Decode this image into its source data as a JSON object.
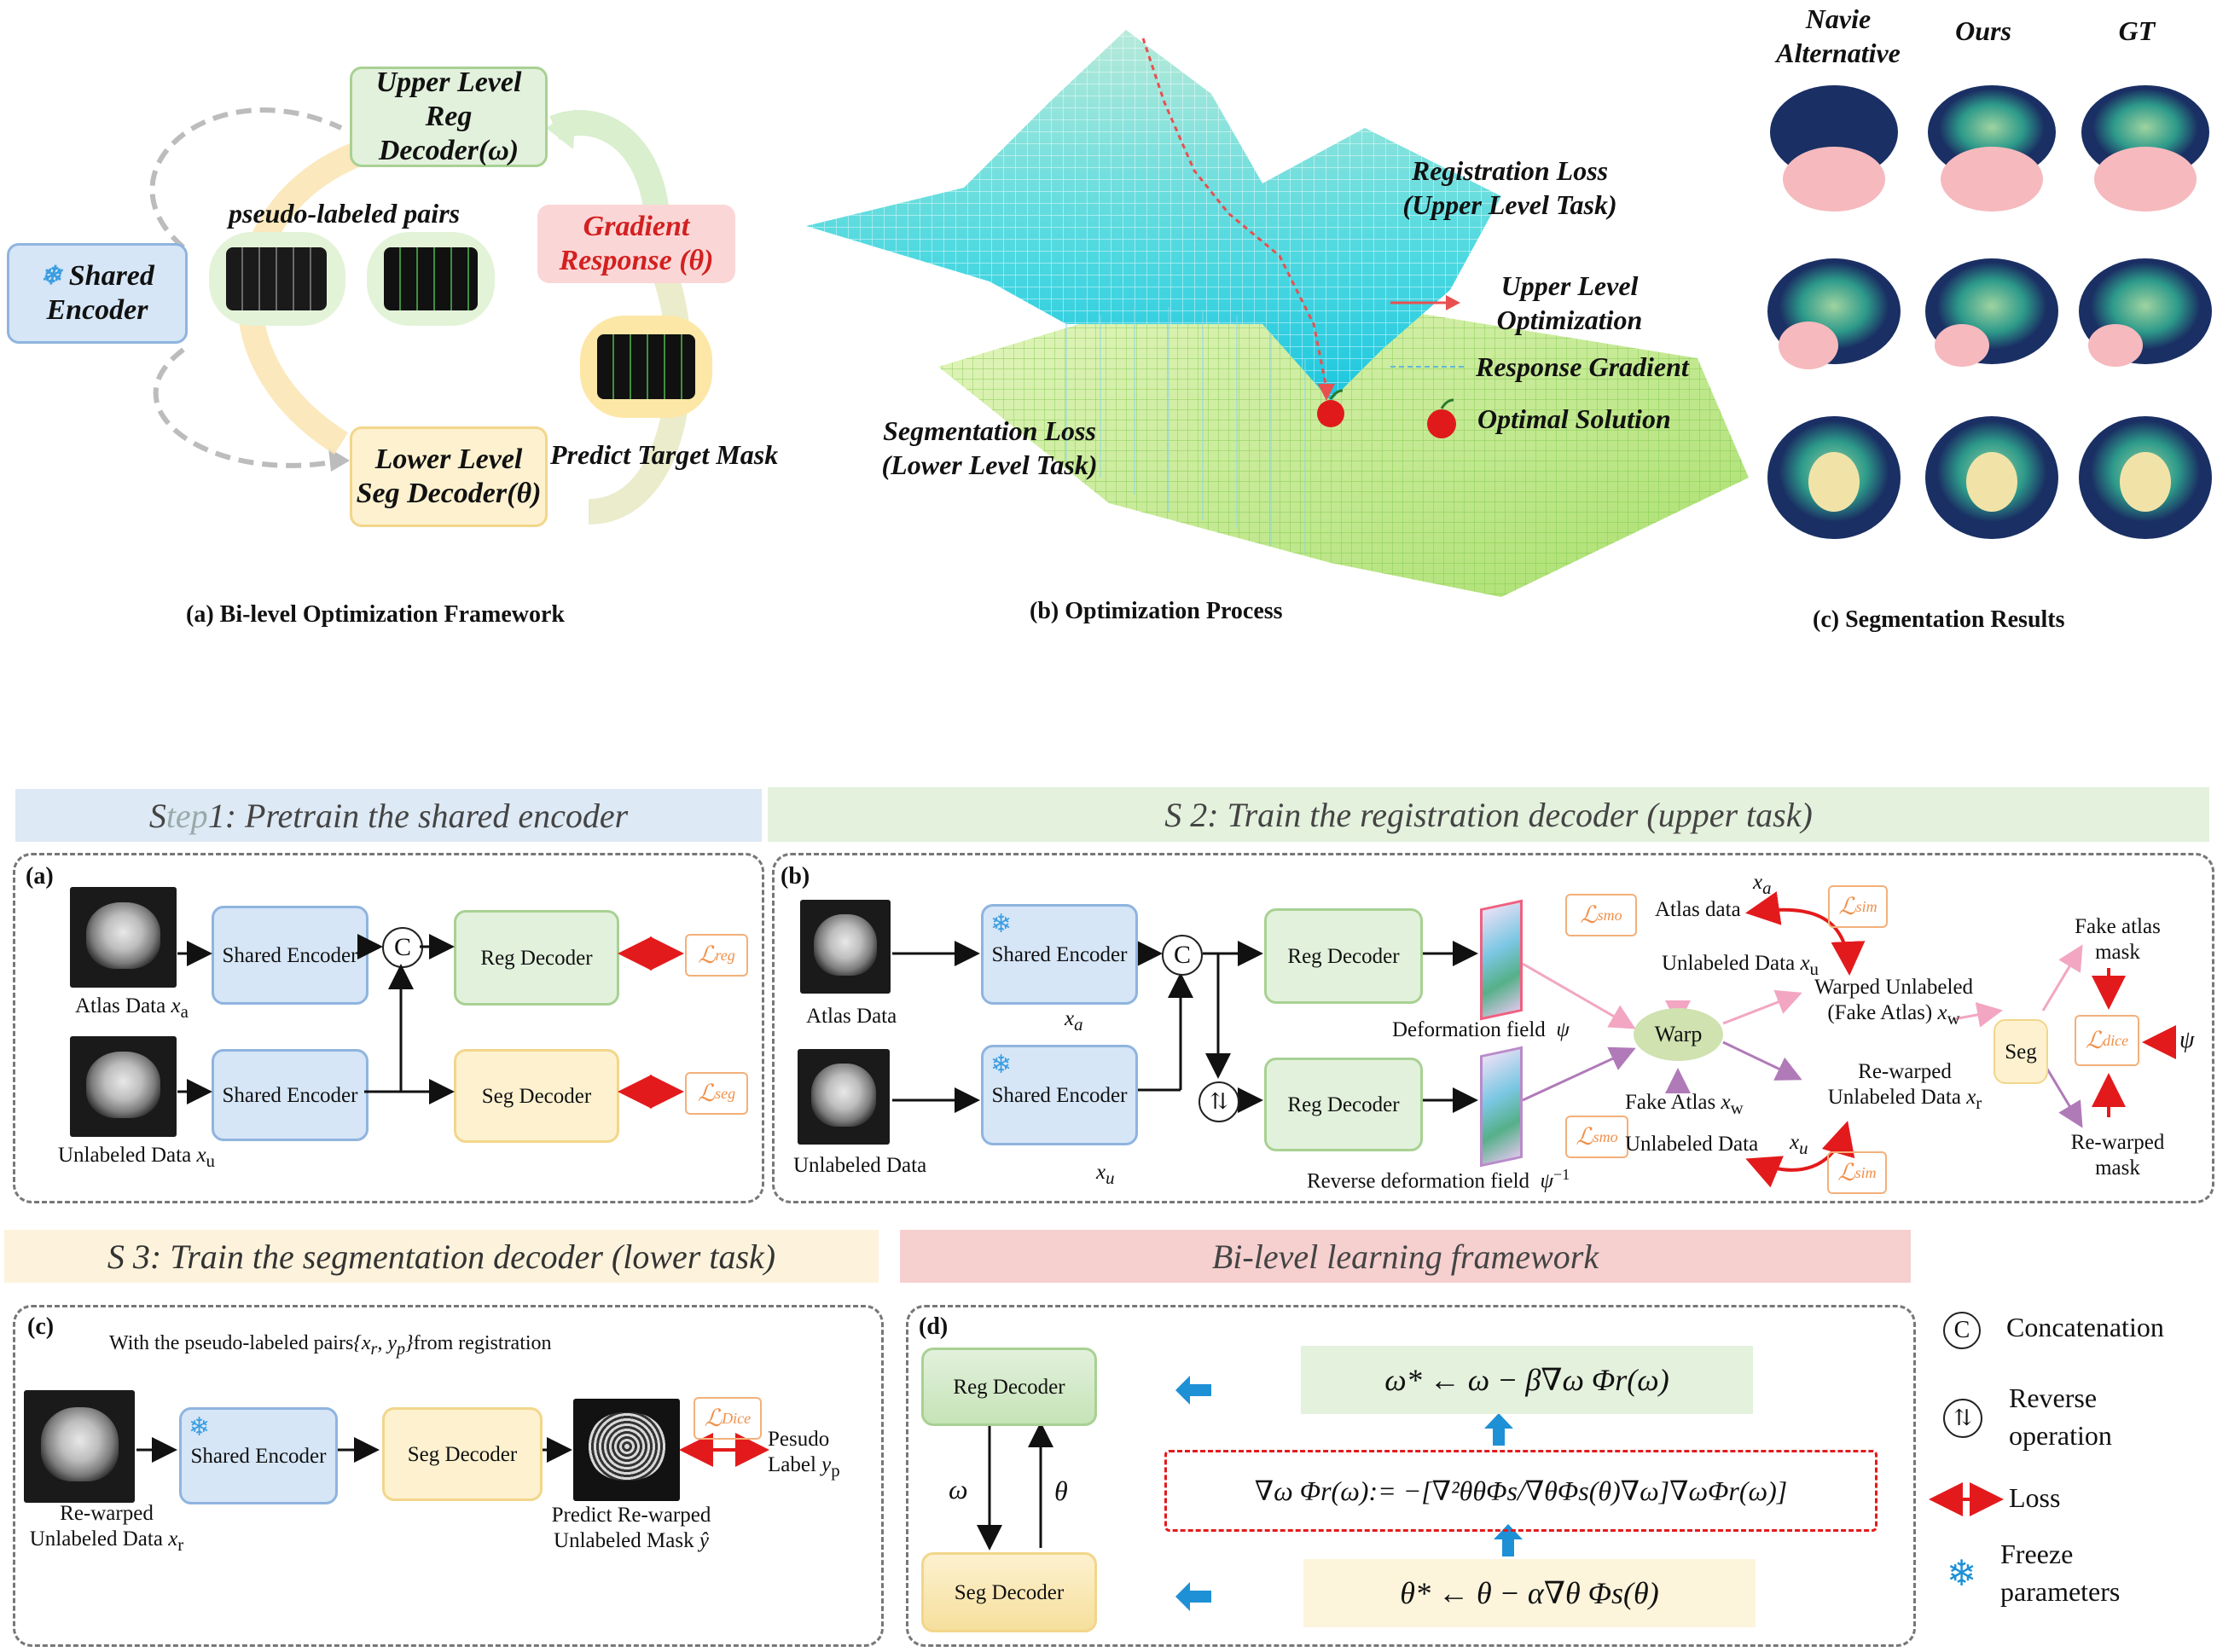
{
  "top": {
    "shared_encoder": "Shared Encoder",
    "upper_level": "Upper Level Reg Decoder(ω)",
    "lower_level": "Lower Level Seg Decoder(θ)",
    "gradient_response": "Gradient Response (θ)",
    "pseudo_pairs": "pseudo-labeled pairs",
    "predict_mask": "Predict Target Mask",
    "reg_loss": "Registration Loss (Upper Level Task)",
    "upper_opt": "Upper Level Optimization",
    "resp_grad": "Response Gradient",
    "optimal": "Optimal Solution",
    "seg_loss": "Segmentation  Loss (Lower Level Task)",
    "col_naive": "Navie Alternative",
    "col_ours": "Ours",
    "col_gt": "GT",
    "caption_a": "(a)  Bi-level Optimization Framework",
    "caption_b": "(b)  Optimization Process",
    "caption_c": "(c)  Segmentation Results"
  },
  "banners": {
    "step1_prefix": "S",
    "step1_faded": "tep",
    "step1_rest": " 1: Pretrain the shared encoder",
    "step2": "S 2: Train the registration decoder (upper task)",
    "step3": "S 3: Train the segmentation decoder (lower task)",
    "bilevel": "Bi-level learning framework"
  },
  "panel_a": {
    "tag": "(a)",
    "shared_encoder": "Shared Encoder",
    "reg_decoder": "Reg Decoder",
    "seg_decoder": "Seg Decoder",
    "atlas": "Atlas Data",
    "atlas_var": "x",
    "atlas_sub": "a",
    "unlabeled": "Unlabeled Data",
    "unl_var": "x",
    "unl_sub": "u",
    "concat": "C",
    "loss_reg": "ℒ",
    "loss_reg_sub": "reg",
    "loss_seg": "ℒ",
    "loss_seg_sub": "seg"
  },
  "panel_b": {
    "tag": "(b)",
    "shared_encoder": "Shared Encoder",
    "reg_decoder": "Reg Decoder",
    "atlas": "Atlas Data",
    "unlabeled": "Unlabeled Data",
    "xa_var": "x",
    "xa_sub": "a",
    "xu_var": "x",
    "xu_sub": "u",
    "concat": "C",
    "reverse": "⇅",
    "def_field": "Deformation field",
    "psi": "ψ",
    "rev_field": "Reverse deformation field",
    "psi_inv": "ψ",
    "psi_inv_sup": "−1",
    "warp": "Warp",
    "seg": "Seg",
    "atlas_data": "Atlas data",
    "unlabeled_data_xu": "Unlabeled Data",
    "warped_unl": "Warped Unlabeled",
    "fake_atlas": "(Fake Atlas)",
    "xw_var": "x",
    "xw_sub": "w",
    "fake_atlas_xw": "Fake Atlas",
    "rewarped": "Re-warped",
    "rewarped_data": "Unlabeled Data",
    "xr_var": "x",
    "xr_sub": "r",
    "unlabeled_data2": "Unlabeled Data",
    "fake_atlas_mask": "Fake atlas mask",
    "rewarped_mask": "Re-warped mask",
    "loss": "ℒ",
    "smo": "smo",
    "sim": "sim",
    "dice": "dice"
  },
  "panel_c": {
    "tag": "(c)",
    "with_pairs": "With the pseudo-labeled pairs",
    "pairs_math": "{x",
    "pairs_r": "r",
    "pairs_mid": ", y",
    "pairs_p": "p",
    "pairs_end": "}",
    "from_reg": "from registration",
    "shared_encoder": "Shared Encoder",
    "seg_decoder": "Seg Decoder",
    "rewarped": "Re-warped",
    "rewarped_data": "Unlabeled Data",
    "xr_var": "x",
    "xr_sub": "r",
    "predict": "Predict Re-warped",
    "predict2": "Unlabeled Mask",
    "yhat": "ŷ",
    "pseudo": "Pesudo",
    "pseudo2": "Label",
    "yp_var": "y",
    "yp_sub": "p",
    "loss": "ℒ",
    "dice": "Dice"
  },
  "panel_d": {
    "tag": "(d)",
    "reg_decoder": "Reg Decoder",
    "seg_decoder": "Seg Decoder",
    "omega": "ω",
    "theta": "θ",
    "eq_upper": "ω* ←   ω − β∇ω Φr(ω)",
    "eq_mid": "∇ω Φr(ω):= −[∇²θθΦs/∇θΦs(θ)∇ω]∇ωΦr(ω)]",
    "eq_lower": "θ* ←  θ − α∇θ Φs(θ)"
  },
  "legend": {
    "concat_sym": "C",
    "concat": "Concatenation",
    "reverse_sym": "⇅",
    "reverse": "Reverse operation",
    "loss": "Loss",
    "freeze_sym": "❄",
    "freeze": "Freeze parameters"
  },
  "colors": {
    "blue_box": "#d6e6f7",
    "green_box": "#e2f1dc",
    "yellow_box": "#fdf1cf",
    "pink_box": "#fbd6d6",
    "loss_red": "#e31a1c",
    "arrow_blue": "#1e90d6"
  }
}
